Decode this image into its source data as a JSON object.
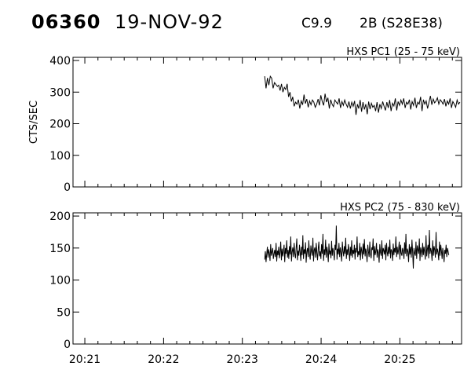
{
  "header": {
    "event_id": "06360",
    "date": "19-NOV-92",
    "flare_class": "C9.9",
    "flare_info": "2B (S28E38)"
  },
  "chart_data": [
    {
      "type": "line",
      "title": "HXS PC1 (25 - 75 keV)",
      "ylabel": "CTS/SEC",
      "ylim": [
        0,
        410
      ],
      "yticks": [
        0,
        100,
        200,
        300,
        400
      ],
      "xlim": [
        "20:20:51",
        "20:25:47"
      ],
      "xticks": [
        "20:21",
        "20:22",
        "20:23",
        "20:24",
        "20:25"
      ],
      "show_xtick_labels": false,
      "series": [
        {
          "x_start": "20:23:17",
          "x_step_seconds": 1.07,
          "values": [
            350,
            312,
            345,
            322,
            350,
            344,
            312,
            330,
            324,
            318,
            322,
            305,
            326,
            300,
            315,
            308,
            326,
            285,
            300,
            270,
            285,
            255,
            268,
            262,
            276,
            248,
            272,
            260,
            292,
            264,
            278,
            252,
            272,
            260,
            275,
            268,
            252,
            262,
            278,
            258,
            290,
            270,
            258,
            295,
            268,
            282,
            248,
            276,
            262,
            254,
            275,
            268,
            262,
            280,
            250,
            270,
            258,
            275,
            262,
            252,
            270,
            248,
            268,
            255,
            272,
            228,
            262,
            248,
            275,
            238,
            268,
            245,
            262,
            230,
            270,
            246,
            265,
            252,
            258,
            240,
            268,
            235,
            262,
            248,
            270,
            255,
            242,
            268,
            250,
            275,
            240,
            265,
            256,
            280,
            242,
            270,
            258,
            275,
            262,
            280,
            250,
            268,
            262,
            276,
            245,
            270,
            258,
            282,
            250,
            268,
            262,
            285,
            240,
            276,
            262,
            272,
            248,
            268,
            288,
            260,
            278,
            266,
            272,
            282,
            262,
            276,
            270,
            262,
            278,
            255,
            272,
            262,
            280,
            250,
            270,
            262,
            252,
            275,
            262,
            268
          ]
        }
      ]
    },
    {
      "type": "line",
      "title": "HXS PC2 (75 - 830 keV)",
      "ylim": [
        0,
        205
      ],
      "yticks": [
        0,
        50,
        100,
        150,
        200
      ],
      "xlim": [
        "20:20:51",
        "20:25:47"
      ],
      "xticks": [
        "20:21",
        "20:22",
        "20:23",
        "20:24",
        "20:25"
      ],
      "show_xtick_labels": true,
      "series": [
        {
          "x_start": "20:23:17",
          "x_step_seconds": 0.51,
          "values": [
            132,
            145,
            128,
            140,
            152,
            135,
            148,
            142,
            130,
            156,
            138,
            144,
            150,
            133,
            141,
            147,
            136,
            158,
            129,
            146,
            139,
            152,
            134,
            143,
            160,
            131,
            149,
            137,
            145,
            155,
            128,
            150,
            141,
            162,
            135,
            147,
            133,
            153,
            140,
            168,
            129,
            144,
            151,
            136,
            158,
            142,
            134,
            149,
            165,
            131,
            146,
            138,
            155,
            143,
            130,
            152,
            139,
            170,
            133,
            148,
            141,
            159,
            127,
            145,
            150,
            136,
            162,
            140,
            132,
            154,
            144,
            138,
            166,
            129,
            147,
            151,
            135,
            158,
            142,
            131,
            149,
            160,
            137,
            145,
            133,
            156,
            141,
            172,
            130,
            148,
            139,
            163,
            135,
            152,
            144,
            128,
            157,
            140,
            146,
            134,
            161,
            138,
            150,
            143,
            131,
            155,
            147,
            185,
            132,
            149,
            140,
            158,
            136,
            151,
            142,
            129,
            160,
            145,
            137,
            153,
            141,
            166,
            133,
            148,
            139,
            156,
            144,
            130,
            152,
            138,
            162,
            135,
            147,
            141,
            155,
            132,
            150,
            143,
            168,
            136,
            145,
            139,
            158,
            131,
            152,
            146,
            133,
            157,
            140,
            164,
            137,
            149,
            142,
            128,
            155,
            144,
            136,
            160,
            141,
            134,
            151,
            147,
            165,
            130,
            153,
            139,
            145,
            158,
            135,
            148,
            142,
            127,
            156,
            143,
            138,
            162,
            133,
            150,
            146,
            140,
            155,
            131,
            158,
            144,
            137,
            152,
            141,
            163,
            134,
            148,
            145,
            130,
            157,
            139,
            150,
            143,
            168,
            136,
            152,
            140,
            147,
            160,
            132,
            155,
            142,
            138,
            150,
            146,
            133,
            159,
            141,
            172,
            137,
            149,
            144,
            128,
            156,
            140,
            152,
            135,
            163,
            145,
            118,
            150,
            142,
            138,
            160,
            133,
            154,
            147,
            141,
            165,
            130,
            151,
            146,
            136,
            158,
            139,
            152,
            144,
            132,
            170,
            137,
            148,
            155,
            134,
            178,
            141,
            150,
            145,
            130,
            162,
            138,
            153,
            147,
            135,
            175,
            140,
            149,
            143,
            131,
            160,
            138,
            155,
            146,
            133,
            150,
            142,
            128,
            147,
            141,
            155,
            136,
            150,
            145,
            139
          ]
        }
      ]
    }
  ]
}
